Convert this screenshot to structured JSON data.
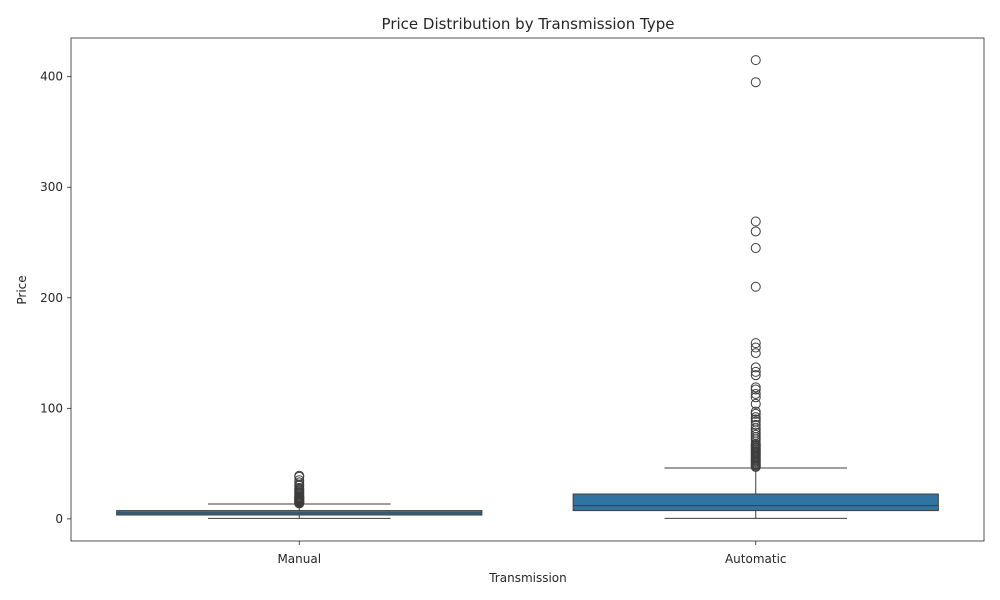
{
  "chart_data": {
    "type": "box",
    "title": "Price Distribution by Transmission Type",
    "xlabel": "Transmission",
    "ylabel": "Price",
    "ylim": [
      -20,
      435
    ],
    "yticks": [
      0,
      100,
      200,
      300,
      400
    ],
    "grid": false,
    "legend": "none",
    "box_color": "#3274a1",
    "line_color": "#3d3d3d",
    "categories": [
      "Manual",
      "Automatic"
    ],
    "boxes": [
      {
        "name": "Manual",
        "whisker_low": 0.5,
        "q1": 3.5,
        "median": 5.3,
        "q3": 7.5,
        "whisker_high": 13.5,
        "outliers": [
          14,
          14.5,
          15,
          15.5,
          16,
          16.5,
          17,
          17.5,
          18,
          18.5,
          19,
          19.5,
          20,
          21,
          22,
          23,
          24,
          25,
          26,
          27,
          28,
          30,
          31,
          33,
          35,
          38,
          39
        ]
      },
      {
        "name": "Automatic",
        "whisker_low": 0.5,
        "q1": 7.5,
        "median": 12,
        "q3": 22.5,
        "whisker_high": 46,
        "outliers": [
          47,
          48,
          49,
          50,
          51,
          52,
          53,
          54,
          55,
          56,
          57,
          58,
          59,
          60,
          61,
          62,
          63,
          64,
          65,
          66,
          67,
          68,
          70,
          72,
          74,
          76,
          78,
          80,
          82,
          85,
          88,
          90,
          92,
          95,
          97,
          104,
          110,
          113,
          117,
          119,
          130,
          133,
          137,
          150,
          155,
          159,
          210,
          245,
          260,
          269,
          395,
          415
        ]
      }
    ]
  }
}
